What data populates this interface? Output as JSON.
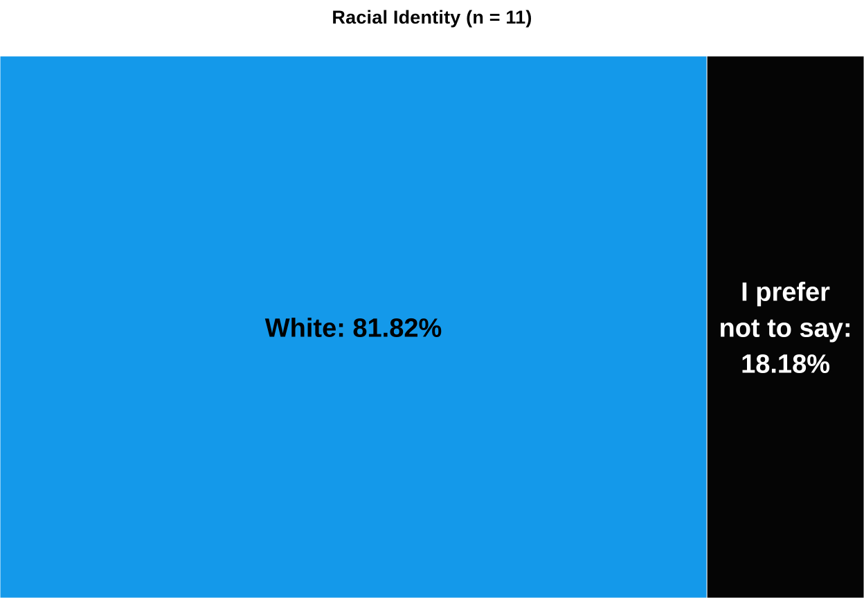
{
  "chart_data": {
    "type": "treemap",
    "title": "Racial Identity (n = 11)",
    "items": [
      {
        "name": "White",
        "value": 81.82,
        "label_lines": [
          "White: 81.82%"
        ],
        "color": "#1499EA",
        "label_color": "#000000"
      },
      {
        "name": "I prefer not to say",
        "value": 18.18,
        "label_lines": [
          "I prefer",
          "not to say:",
          "18.18%"
        ],
        "color": "#050505",
        "label_color": "#FFFFFF"
      }
    ],
    "legend": "none",
    "grid": false
  }
}
